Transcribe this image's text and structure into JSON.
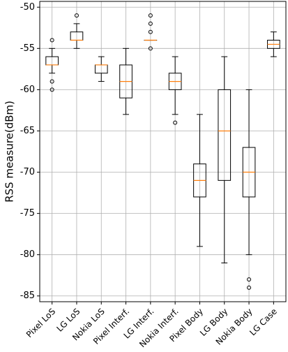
{
  "chart_data": {
    "type": "box",
    "y_label": "RSS measure(dBm)",
    "categories": [
      "Pixel LoS",
      "LG LoS",
      "Nokia LoS",
      "Pixel Interf.",
      "LG Interf.",
      "Nokia Interf.",
      "Pixel Body",
      "LG Body",
      "Nokia Body",
      "LG Case"
    ],
    "boxes": [
      {
        "whisker_low": -58,
        "q1": -57,
        "median": -57,
        "q3": -56,
        "whisker_high": -55,
        "outliers": [
          -54,
          -59,
          -60
        ]
      },
      {
        "whisker_low": -55,
        "q1": -54,
        "median": -54,
        "q3": -53,
        "whisker_high": -52,
        "outliers": [
          -51
        ]
      },
      {
        "whisker_low": -59,
        "q1": -58,
        "median": -57,
        "q3": -57,
        "whisker_high": -56,
        "outliers": []
      },
      {
        "whisker_low": -63,
        "q1": -61,
        "median": -59,
        "q3": -57,
        "whisker_high": -55,
        "outliers": []
      },
      {
        "whisker_low": -54,
        "q1": -54,
        "median": -54,
        "q3": -54,
        "whisker_high": -54,
        "outliers": [
          -51,
          -52,
          -53,
          -55
        ]
      },
      {
        "whisker_low": -63,
        "q1": -60,
        "median": -59,
        "q3": -58,
        "whisker_high": -56,
        "outliers": [
          -64
        ]
      },
      {
        "whisker_low": -79,
        "q1": -73,
        "median": -71,
        "q3": -69,
        "whisker_high": -63,
        "outliers": []
      },
      {
        "whisker_low": -81,
        "q1": -71,
        "median": -65,
        "q3": -60,
        "whisker_high": -56,
        "outliers": []
      },
      {
        "whisker_low": -80,
        "q1": -73,
        "median": -70,
        "q3": -67,
        "whisker_high": -60,
        "outliers": [
          -83,
          -84
        ]
      },
      {
        "whisker_low": -56,
        "q1": -55,
        "median": -54.5,
        "q3": -54,
        "whisker_high": -53,
        "outliers": []
      }
    ],
    "box_color": "#000000",
    "median_color": "#ff7f0e",
    "ylim": [
      -85.7,
      -49.3
    ],
    "yticks": [
      -85,
      -80,
      -75,
      -70,
      -65,
      -60,
      -55,
      -50
    ],
    "grid": true
  }
}
